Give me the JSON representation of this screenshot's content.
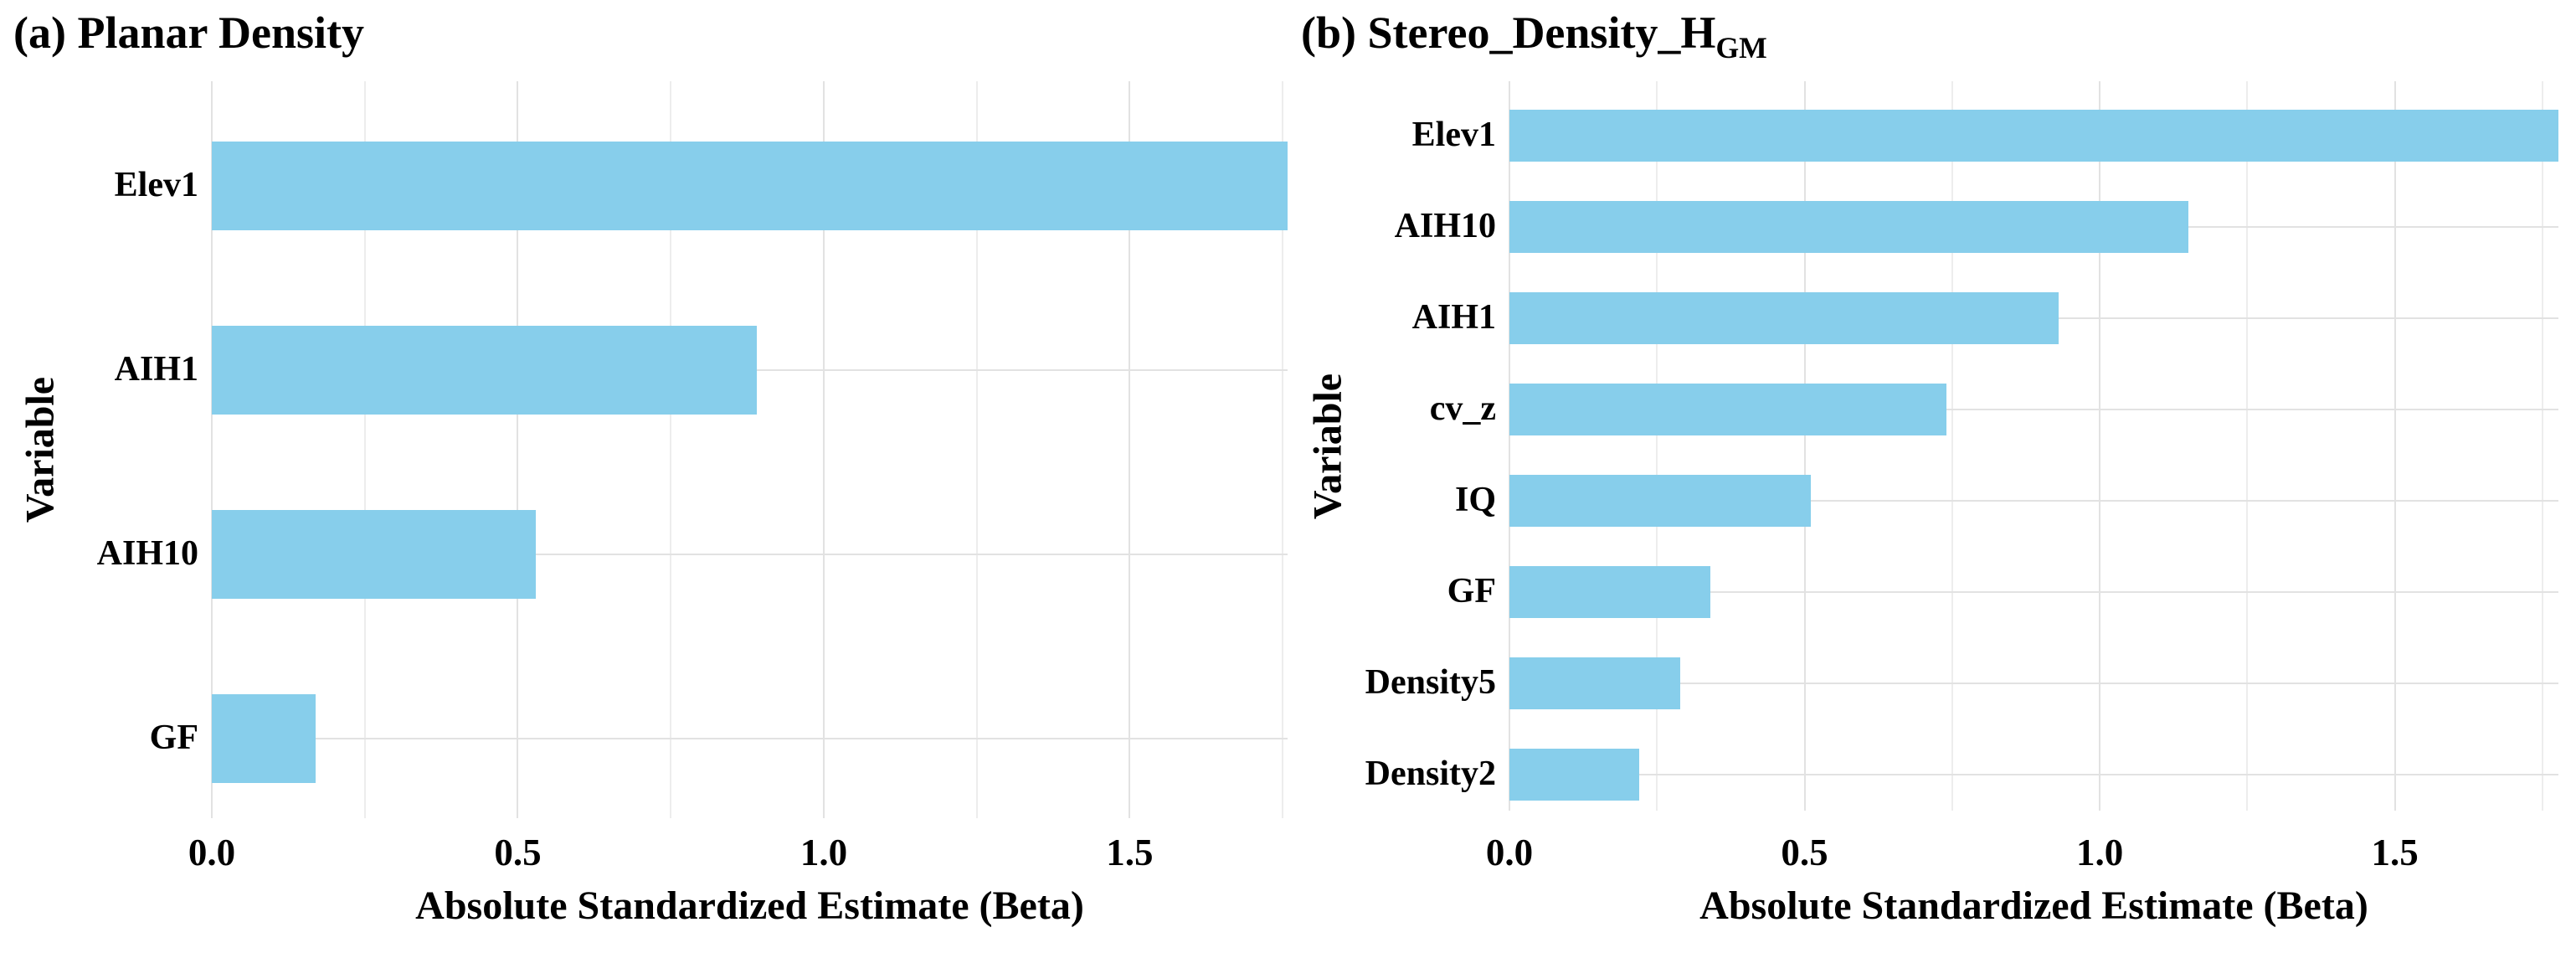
{
  "figure": {
    "background": "#FFFFFF"
  },
  "colors": {
    "bar": "#87CEEB",
    "grid_major": "#E2E2E2",
    "grid_minor": "#EDEDED",
    "text": "#000000"
  },
  "panels": [
    {
      "title_prefix": "(a) Planar Density",
      "title_sub": "",
      "y_axis_title": "Variable",
      "x_axis_title": "Absolute Standardized Estimate (Beta)",
      "xtick_labels": [
        "0.0",
        "0.5",
        "1.0",
        "1.5"
      ]
    },
    {
      "title_prefix": "(b) Stereo_Density_H",
      "title_sub": "GM",
      "y_axis_title": "Variable",
      "x_axis_title": "Absolute Standardized Estimate (Beta)",
      "xtick_labels": [
        "0.0",
        "0.5",
        "1.0",
        "1.5"
      ]
    }
  ],
  "chart_data": [
    {
      "type": "bar",
      "orientation": "horizontal",
      "title": "(a) Planar Density",
      "categories": [
        "Elev1",
        "AIH1",
        "AIH10",
        "GF"
      ],
      "values": [
        1.76,
        0.89,
        0.53,
        0.17
      ],
      "xlabel": "Absolute Standardized Estimate (Beta)",
      "ylabel": "Variable",
      "xlim": [
        0,
        1.758
      ],
      "xticks": [
        0.0,
        0.5,
        1.0,
        1.5
      ],
      "gridline_step": 0.25,
      "grid": "light grey vertical gridlines every 0.25 plus one horizontal gridline per category; no axis lines or tick marks",
      "legend": "none",
      "bar_color": "#87CEEB",
      "note": "Elev1 bar is clipped flush with the right edge of the panel"
    },
    {
      "type": "bar",
      "orientation": "horizontal",
      "title": "(b) Stereo_Density_H_GM (GM is subscript)",
      "categories": [
        "Elev1",
        "AIH10",
        "AIH1",
        "cv_z",
        "IQ",
        "GF",
        "Density5",
        "Density2"
      ],
      "values": [
        1.78,
        1.15,
        0.93,
        0.74,
        0.51,
        0.34,
        0.29,
        0.22
      ],
      "xlabel": "Absolute Standardized Estimate (Beta)",
      "ylabel": "Variable",
      "xlim": [
        0,
        1.777
      ],
      "xticks": [
        0.0,
        0.5,
        1.0,
        1.5
      ],
      "gridline_step": 0.25,
      "grid": "light grey vertical gridlines every 0.25 plus one horizontal gridline per category; no axis lines or tick marks",
      "legend": "none",
      "bar_color": "#87CEEB",
      "note": "Elev1 bar is clipped flush with the right edge of the panel"
    }
  ]
}
